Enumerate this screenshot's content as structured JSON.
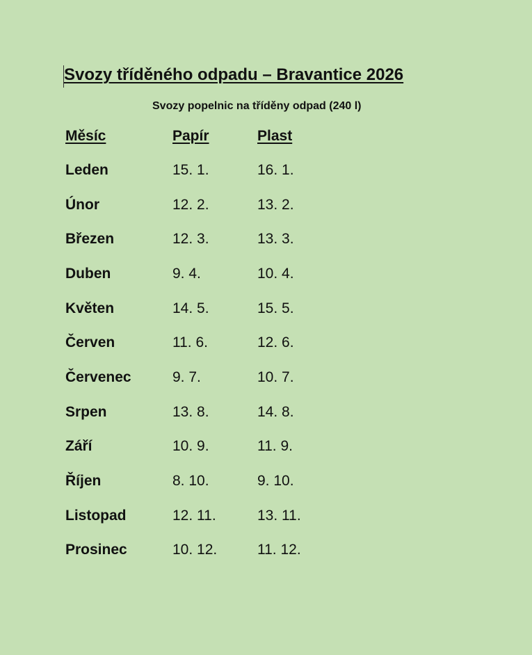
{
  "document": {
    "title": "Svozy tříděného odpadu – Bravantice 2026",
    "subtitle": "Svozy popelnic na tříděny odpad (240 l)"
  },
  "table": {
    "headers": [
      "Měsíc",
      "Papír",
      "Plast"
    ],
    "rows": [
      [
        "Leden",
        "15. 1.",
        "16. 1."
      ],
      [
        "Únor",
        "12. 2.",
        "13. 2."
      ],
      [
        "Březen",
        "12. 3.",
        "13. 3."
      ],
      [
        "Duben",
        "9. 4.",
        "10. 4."
      ],
      [
        "Květen",
        "14. 5.",
        "15. 5."
      ],
      [
        "Červen",
        "11. 6.",
        "12. 6."
      ],
      [
        "Červenec",
        "9. 7.",
        "10. 7."
      ],
      [
        "Srpen",
        "13. 8.",
        "14. 8."
      ],
      [
        "Září",
        "10. 9.",
        "11. 9."
      ],
      [
        "Říjen",
        "8. 10.",
        "9. 10."
      ],
      [
        "Listopad",
        "12. 11.",
        "13. 11."
      ],
      [
        "Prosinec",
        "10. 12.",
        "11. 12."
      ]
    ]
  }
}
